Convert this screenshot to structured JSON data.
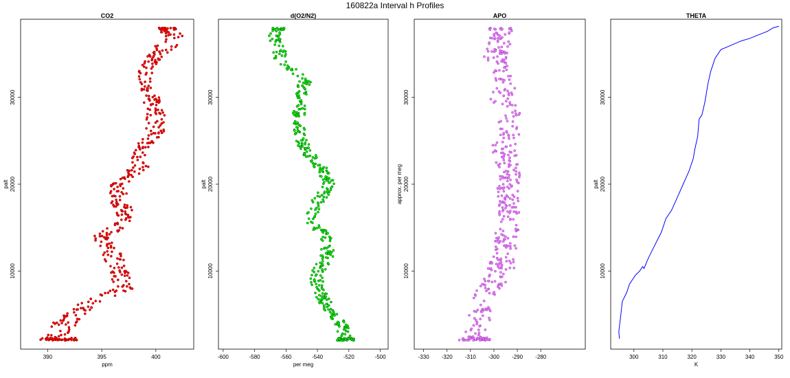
{
  "page": {
    "title": "160822a   Interval h Profiles"
  },
  "chart_data": [
    {
      "type": "scatter",
      "title": "CO2",
      "xlabel": "ppm",
      "ylabel": "palt",
      "xlim": [
        387.5,
        403.5
      ],
      "ylim": [
        1000,
        39000
      ],
      "xticks": [
        390,
        395,
        400
      ],
      "yticks": [
        10000,
        20000,
        30000
      ],
      "marker": {
        "fill": "#ff0000",
        "edge": "#8b0000",
        "style": "points"
      },
      "profile": {
        "y": [
          2000,
          4000,
          6000,
          8000,
          10000,
          12000,
          14000,
          16000,
          18000,
          20000,
          22000,
          24000,
          26000,
          28000,
          30000,
          32000,
          34000,
          36000,
          37000,
          38000
        ],
        "x": [
          391.0,
          391.5,
          393.5,
          397.0,
          396.5,
          396.0,
          395.0,
          397.5,
          396.5,
          396.5,
          398.5,
          398.5,
          400.0,
          400.0,
          399.5,
          399.0,
          399.5,
          401.0,
          401.5,
          401.0
        ]
      },
      "spread": [
        1.2,
        1.2,
        0.9,
        0.9,
        1.0,
        0.9,
        0.8,
        0.8,
        0.9,
        0.7,
        0.8,
        0.8,
        0.9,
        0.9,
        0.9,
        0.9,
        0.7,
        1.0,
        1.0,
        0.8
      ],
      "n_points": 480
    },
    {
      "type": "scatter",
      "title": "d(O2/N2)",
      "xlabel": "per meg",
      "ylabel": "palt",
      "xlim": [
        -603,
        -495
      ],
      "ylim": [
        1000,
        39000
      ],
      "xticks": [
        -600,
        -580,
        -560,
        -540,
        -520,
        -500
      ],
      "yticks": [
        10000,
        20000,
        30000
      ],
      "marker": {
        "fill": "#00ee00",
        "edge": "#006400",
        "style": "points"
      },
      "profile": {
        "y": [
          2000,
          4000,
          6000,
          8000,
          10000,
          12000,
          14000,
          16000,
          18000,
          20000,
          22000,
          24000,
          26000,
          28000,
          30000,
          32000,
          34000,
          36000,
          37000,
          38000
        ],
        "x": [
          -522,
          -525,
          -534,
          -540,
          -540,
          -533,
          -535,
          -545,
          -540,
          -532,
          -538,
          -548,
          -552,
          -552,
          -551,
          -548,
          -563,
          -565,
          -567,
          -565
        ]
      },
      "spread": [
        4,
        4,
        4,
        4,
        5,
        4,
        4,
        4,
        4,
        4,
        4,
        4,
        4,
        4,
        4,
        4,
        4,
        4,
        4,
        4
      ],
      "n_points": 480
    },
    {
      "type": "scatter",
      "title": "APO",
      "xlabel": "",
      "ylabel": "approx. per meg",
      "xlim": [
        -334,
        -261
      ],
      "ylim": [
        1000,
        39000
      ],
      "xticks": [
        -330,
        -320,
        -310,
        -300,
        -290,
        -280
      ],
      "yticks": [
        10000,
        20000,
        30000
      ],
      "marker": {
        "fill": "#ee82ee",
        "edge": "#9932cc",
        "style": "points"
      },
      "profile": {
        "y": [
          2000,
          4000,
          6000,
          8000,
          10000,
          12000,
          14000,
          16000,
          18000,
          20000,
          22000,
          24000,
          26000,
          28000,
          30000,
          32000,
          34000,
          36000,
          37000,
          38000
        ],
        "x": [
          -308,
          -307,
          -305,
          -302,
          -297,
          -295,
          -295,
          -294,
          -294,
          -294,
          -294,
          -296,
          -294,
          -293,
          -297,
          -295,
          -300,
          -298,
          -297,
          -297
        ]
      },
      "spread": [
        5,
        5,
        5,
        5,
        6,
        5,
        5,
        5,
        5,
        5,
        5,
        5,
        5,
        5,
        5,
        5,
        5,
        5,
        5,
        5
      ],
      "n_points": 480
    },
    {
      "type": "line",
      "title": "THETA",
      "xlabel": "K",
      "ylabel": "palt",
      "xlim": [
        292,
        351
      ],
      "ylim": [
        1000,
        39000
      ],
      "xticks": [
        300,
        310,
        320,
        330,
        340,
        350
      ],
      "yticks": [
        10000,
        20000,
        30000
      ],
      "color": "#0000ff",
      "x": [
        295.0,
        294.8,
        295.5,
        296.0,
        297.5,
        298.5,
        300.5,
        302.0,
        303.0,
        303.5,
        305.0,
        306.5,
        308.0,
        309.5,
        311.0,
        313.0,
        315.0,
        317.0,
        319.0,
        320.5,
        321.0,
        322.0,
        322.5,
        323.5,
        324.5,
        325.5,
        326.5,
        328.0,
        330.0,
        333.5,
        337.0,
        340.0,
        343.0,
        346.0,
        348.0,
        349.0,
        350.0
      ],
      "y": [
        2200,
        3000,
        5000,
        6500,
        7500,
        8500,
        9500,
        10000,
        10500,
        10300,
        11500,
        12500,
        13500,
        14500,
        16000,
        17000,
        18500,
        20000,
        21500,
        23000,
        24000,
        25500,
        27500,
        28000,
        29500,
        31500,
        33000,
        34500,
        35500,
        36000,
        36500,
        36800,
        37200,
        37600,
        38000,
        38100,
        38200
      ]
    }
  ]
}
